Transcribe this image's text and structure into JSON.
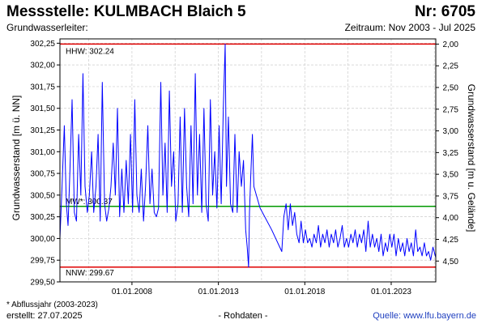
{
  "header": {
    "title": "Messstelle: KULMBACH Blaich 5",
    "nr": "Nr: 6705",
    "aquifer_label": "Grundwasserleiter:",
    "period": "Zeitraum: Nov 2003 - Jul 2025"
  },
  "footer": {
    "footnote": "* Abflussjahr (2003-2023)",
    "created": "erstellt:  27.07.2025",
    "raw_data": "- Rohdaten -",
    "source": "Quelle: www.lfu.bayern.de"
  },
  "colors": {
    "series": "#0000ff",
    "extreme_line": "#e00000",
    "mean_line": "#009900",
    "grid": "#cccccc"
  },
  "chart_data": {
    "type": "line",
    "ylabel": "Grundwasserstand [m ü. NN]",
    "ylabel_right": "Grundwasserstand [m u. Gelände]",
    "ylim": [
      299.5,
      302.3
    ],
    "y_ticks": [
      {
        "value": 302.25,
        "label": "302,25"
      },
      {
        "value": 302.0,
        "label": "302,00"
      },
      {
        "value": 301.75,
        "label": "301,75"
      },
      {
        "value": 301.5,
        "label": "301,50"
      },
      {
        "value": 301.25,
        "label": "301,25"
      },
      {
        "value": 301.0,
        "label": "301,00"
      },
      {
        "value": 300.75,
        "label": "300,75"
      },
      {
        "value": 300.5,
        "label": "300,50"
      },
      {
        "value": 300.25,
        "label": "300,25"
      },
      {
        "value": 300.0,
        "label": "300,00"
      },
      {
        "value": 299.75,
        "label": "299,75"
      },
      {
        "value": 299.5,
        "label": "299,50"
      }
    ],
    "y2_ticks": [
      {
        "value": 302.24,
        "label": "2,00"
      },
      {
        "value": 301.99,
        "label": "2,25"
      },
      {
        "value": 301.74,
        "label": "2,50"
      },
      {
        "value": 301.49,
        "label": "2,75"
      },
      {
        "value": 301.24,
        "label": "3,00"
      },
      {
        "value": 300.99,
        "label": "3,25"
      },
      {
        "value": 300.74,
        "label": "3,50"
      },
      {
        "value": 300.49,
        "label": "3,75"
      },
      {
        "value": 300.24,
        "label": "4,00"
      },
      {
        "value": 299.99,
        "label": "4,25"
      },
      {
        "value": 299.74,
        "label": "4,50"
      }
    ],
    "xlim": [
      "2003-11-01",
      "2025-07-31"
    ],
    "x_ticks": [
      {
        "date": "2008-01-01",
        "label": "01.01.2008"
      },
      {
        "date": "2013-01-01",
        "label": "01.01.2013"
      },
      {
        "date": "2018-01-01",
        "label": "01.01.2018"
      },
      {
        "date": "2023-01-01",
        "label": "01.01.2023"
      }
    ],
    "x_minor_grid": [
      "2005-07-01",
      "2010-07-01",
      "2015-07-01",
      "2020-07-01",
      "2025-07-01"
    ],
    "grid": true,
    "reference_lines": [
      {
        "label": "HHW: 302.24",
        "value": 302.24,
        "color": "#e00000"
      },
      {
        "label": "MW*: 300.37",
        "value": 300.37,
        "color": "#009900"
      },
      {
        "label": "NNW: 299.67",
        "value": 299.67,
        "color": "#e00000"
      }
    ],
    "series": [
      {
        "values": [
          [
            "2003-11-01",
            300.0
          ],
          [
            "2003-12-15",
            300.6
          ],
          [
            "2004-02-01",
            301.3
          ],
          [
            "2004-03-15",
            300.4
          ],
          [
            "2004-04-20",
            300.15
          ],
          [
            "2004-06-01",
            300.8
          ],
          [
            "2004-07-15",
            301.6
          ],
          [
            "2004-09-01",
            300.3
          ],
          [
            "2004-10-15",
            300.2
          ],
          [
            "2004-12-01",
            301.2
          ],
          [
            "2005-01-15",
            300.5
          ],
          [
            "2005-03-01",
            301.9
          ],
          [
            "2005-04-15",
            300.6
          ],
          [
            "2005-06-01",
            300.3
          ],
          [
            "2005-07-15",
            300.5
          ],
          [
            "2005-09-01",
            301.0
          ],
          [
            "2005-10-15",
            300.3
          ],
          [
            "2005-12-01",
            300.6
          ],
          [
            "2006-01-15",
            301.2
          ],
          [
            "2006-03-01",
            300.2
          ],
          [
            "2006-04-15",
            301.8
          ],
          [
            "2006-06-01",
            300.4
          ],
          [
            "2006-07-15",
            300.2
          ],
          [
            "2006-09-01",
            300.35
          ],
          [
            "2006-10-15",
            300.6
          ],
          [
            "2006-12-01",
            301.1
          ],
          [
            "2007-01-15",
            300.5
          ],
          [
            "2007-03-01",
            301.5
          ],
          [
            "2007-04-15",
            300.25
          ],
          [
            "2007-06-01",
            300.8
          ],
          [
            "2007-07-15",
            300.3
          ],
          [
            "2007-09-01",
            300.9
          ],
          [
            "2007-10-15",
            300.4
          ],
          [
            "2007-12-01",
            301.2
          ],
          [
            "2008-01-15",
            300.3
          ],
          [
            "2008-03-01",
            301.6
          ],
          [
            "2008-04-15",
            300.5
          ],
          [
            "2008-06-01",
            300.3
          ],
          [
            "2008-07-15",
            300.8
          ],
          [
            "2008-09-01",
            300.2
          ],
          [
            "2008-10-15",
            300.6
          ],
          [
            "2008-12-01",
            301.3
          ],
          [
            "2009-01-15",
            300.4
          ],
          [
            "2009-03-01",
            300.8
          ],
          [
            "2009-04-15",
            300.3
          ],
          [
            "2009-06-01",
            300.25
          ],
          [
            "2009-07-15",
            300.35
          ],
          [
            "2009-09-01",
            301.8
          ],
          [
            "2009-10-15",
            300.5
          ],
          [
            "2009-12-01",
            301.1
          ],
          [
            "2010-01-15",
            300.3
          ],
          [
            "2010-03-01",
            301.7
          ],
          [
            "2010-04-15",
            300.6
          ],
          [
            "2010-06-01",
            301.0
          ],
          [
            "2010-07-15",
            300.2
          ],
          [
            "2010-09-01",
            300.4
          ],
          [
            "2010-10-15",
            301.4
          ],
          [
            "2010-12-01",
            300.3
          ],
          [
            "2011-01-15",
            301.5
          ],
          [
            "2011-03-01",
            300.6
          ],
          [
            "2011-04-15",
            300.25
          ],
          [
            "2011-06-01",
            301.3
          ],
          [
            "2011-07-15",
            300.4
          ],
          [
            "2011-09-01",
            301.9
          ],
          [
            "2011-10-15",
            300.5
          ],
          [
            "2011-12-01",
            301.2
          ],
          [
            "2012-01-15",
            300.3
          ],
          [
            "2012-03-01",
            301.5
          ],
          [
            "2012-04-15",
            300.4
          ],
          [
            "2012-06-01",
            300.2
          ],
          [
            "2012-07-15",
            301.6
          ],
          [
            "2012-09-01",
            300.5
          ],
          [
            "2012-10-15",
            301.0
          ],
          [
            "2012-12-01",
            300.35
          ],
          [
            "2013-01-15",
            301.3
          ],
          [
            "2013-03-01",
            300.4
          ],
          [
            "2013-04-15",
            301.5
          ],
          [
            "2013-05-25",
            302.24
          ],
          [
            "2013-06-20",
            300.6
          ],
          [
            "2013-08-01",
            301.4
          ],
          [
            "2013-09-15",
            300.4
          ],
          [
            "2013-11-01",
            300.3
          ],
          [
            "2013-12-15",
            301.2
          ],
          [
            "2014-02-01",
            300.3
          ],
          [
            "2014-03-15",
            301.0
          ],
          [
            "2014-05-01",
            300.6
          ],
          [
            "2014-06-15",
            300.9
          ],
          [
            "2014-08-01",
            300.1
          ],
          [
            "2014-09-01",
            299.9
          ],
          [
            "2014-10-01",
            299.67
          ],
          [
            "2014-10-20",
            300.3
          ],
          [
            "2014-11-15",
            300.7
          ],
          [
            "2014-12-20",
            301.2
          ],
          [
            "2015-01-20",
            300.6
          ],
          [
            "2015-06-01",
            300.35
          ],
          [
            "2016-02-01",
            300.1
          ],
          [
            "2016-09-01",
            299.85
          ],
          [
            "2016-10-15",
            300.25
          ],
          [
            "2016-12-01",
            300.4
          ],
          [
            "2017-01-15",
            300.1
          ],
          [
            "2017-03-01",
            300.4
          ],
          [
            "2017-04-15",
            300.15
          ],
          [
            "2017-06-01",
            300.3
          ],
          [
            "2017-07-15",
            300.05
          ],
          [
            "2017-09-01",
            299.95
          ],
          [
            "2017-10-15",
            300.2
          ],
          [
            "2017-12-01",
            299.95
          ],
          [
            "2018-01-15",
            300.1
          ],
          [
            "2018-03-01",
            299.95
          ],
          [
            "2018-04-15",
            300.0
          ],
          [
            "2018-06-01",
            299.9
          ],
          [
            "2018-07-15",
            300.05
          ],
          [
            "2018-09-01",
            299.95
          ],
          [
            "2018-10-15",
            300.15
          ],
          [
            "2018-12-01",
            299.9
          ],
          [
            "2019-01-15",
            300.05
          ],
          [
            "2019-03-01",
            299.95
          ],
          [
            "2019-04-15",
            300.1
          ],
          [
            "2019-06-01",
            299.9
          ],
          [
            "2019-07-15",
            300.05
          ],
          [
            "2019-09-01",
            299.95
          ],
          [
            "2019-10-15",
            300.1
          ],
          [
            "2019-12-01",
            299.9
          ],
          [
            "2020-01-15",
            300.0
          ],
          [
            "2020-03-01",
            300.15
          ],
          [
            "2020-04-15",
            299.9
          ],
          [
            "2020-06-01",
            300.0
          ],
          [
            "2020-07-15",
            299.9
          ],
          [
            "2020-09-01",
            300.05
          ],
          [
            "2020-10-15",
            299.95
          ],
          [
            "2020-12-01",
            300.1
          ],
          [
            "2021-01-15",
            299.9
          ],
          [
            "2021-03-01",
            300.05
          ],
          [
            "2021-04-15",
            299.95
          ],
          [
            "2021-06-01",
            300.1
          ],
          [
            "2021-07-15",
            299.85
          ],
          [
            "2021-09-01",
            300.2
          ],
          [
            "2021-10-15",
            299.9
          ],
          [
            "2021-12-01",
            300.05
          ],
          [
            "2022-01-15",
            299.9
          ],
          [
            "2022-03-01",
            300.0
          ],
          [
            "2022-04-15",
            299.85
          ],
          [
            "2022-06-01",
            300.05
          ],
          [
            "2022-07-15",
            299.8
          ],
          [
            "2022-09-01",
            299.95
          ],
          [
            "2022-10-15",
            299.85
          ],
          [
            "2022-12-01",
            300.05
          ],
          [
            "2023-01-15",
            299.9
          ],
          [
            "2023-03-01",
            300.05
          ],
          [
            "2023-04-15",
            299.8
          ],
          [
            "2023-06-01",
            300.0
          ],
          [
            "2023-07-15",
            299.85
          ],
          [
            "2023-09-01",
            299.95
          ],
          [
            "2023-10-15",
            299.8
          ],
          [
            "2023-12-01",
            300.0
          ],
          [
            "2024-01-15",
            299.85
          ],
          [
            "2024-03-01",
            299.95
          ],
          [
            "2024-04-15",
            299.8
          ],
          [
            "2024-06-01",
            300.1
          ],
          [
            "2024-07-15",
            299.85
          ],
          [
            "2024-09-01",
            299.9
          ],
          [
            "2024-10-15",
            299.8
          ],
          [
            "2024-12-01",
            299.95
          ],
          [
            "2025-01-15",
            299.8
          ],
          [
            "2025-03-01",
            299.85
          ],
          [
            "2025-04-15",
            299.75
          ],
          [
            "2025-06-01",
            299.9
          ],
          [
            "2025-07-31",
            299.78
          ]
        ]
      }
    ]
  }
}
